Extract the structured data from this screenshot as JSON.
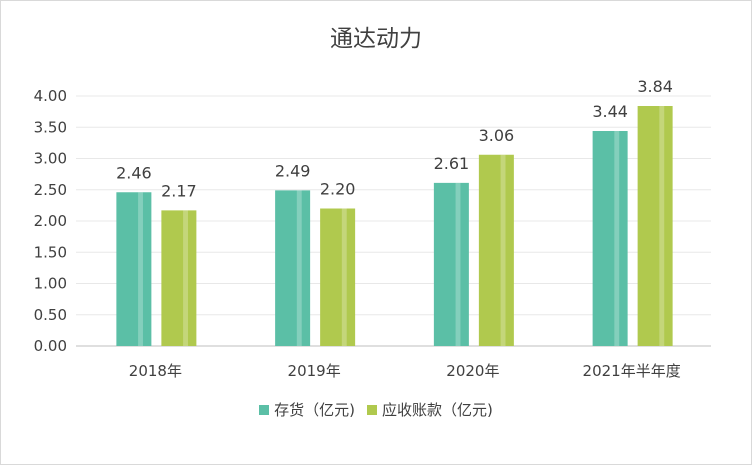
{
  "chart_data": {
    "type": "bar",
    "title": "通达动力",
    "categories": [
      "2018年",
      "2019年",
      "2020年",
      "2021年半年度"
    ],
    "series": [
      {
        "name": "存货（亿元)",
        "values": [
          2.46,
          2.49,
          2.61,
          3.44
        ],
        "color": "#5bbfa6"
      },
      {
        "name": "应收账款（亿元)",
        "values": [
          2.17,
          2.2,
          3.06,
          3.84
        ],
        "color": "#b0c94e"
      }
    ],
    "ylim": [
      0,
      4
    ],
    "yticks": [
      "0.00",
      "0.50",
      "1.00",
      "1.50",
      "2.00",
      "2.50",
      "3.00",
      "3.50",
      "4.00"
    ],
    "grid": true,
    "legend": "bottom",
    "xlabel": "",
    "ylabel": ""
  }
}
